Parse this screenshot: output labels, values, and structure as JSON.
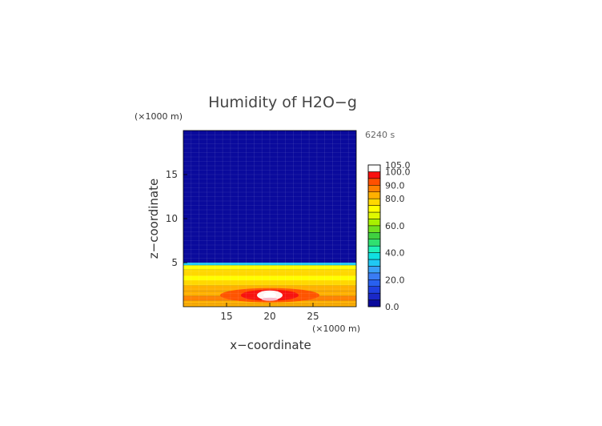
{
  "chart_data": {
    "type": "heatmap",
    "title": "Humidity of H2O−g",
    "xlabel": "x−coordinate",
    "ylabel": "z−coordinate",
    "x_unit": "(×1000 m)",
    "z_unit": "(×1000 m)",
    "time_label": "6240 s",
    "xlim": [
      10,
      30
    ],
    "ylim": [
      0,
      20
    ],
    "x_ticks": [
      15,
      20,
      25
    ],
    "y_ticks": [
      5,
      10,
      15
    ],
    "colorbar": {
      "levels": [
        0,
        5,
        10,
        15,
        20,
        25,
        30,
        35,
        40,
        45,
        50,
        55,
        60,
        65,
        70,
        75,
        80,
        85,
        90,
        95,
        100,
        105
      ],
      "colors": [
        "#0a0a9c",
        "#1a28c8",
        "#2040e0",
        "#2860f0",
        "#3a7cf4",
        "#3aa0f8",
        "#20c8f4",
        "#10e0e0",
        "#20f0b8",
        "#30e070",
        "#40d040",
        "#70e020",
        "#a8f000",
        "#e0f800",
        "#ffff00",
        "#ffd800",
        "#ffb000",
        "#ff8000",
        "#ff5000",
        "#f81010",
        "#ffffff"
      ],
      "tick_labels": [
        "105.0",
        "100.0",
        "90.0",
        "80.0",
        "60.0",
        "40.0",
        "20.0",
        "0.0"
      ],
      "tick_values": [
        105,
        100,
        90,
        80,
        60,
        40,
        20,
        0
      ]
    },
    "field": {
      "upper_value": 2,
      "profile": [
        {
          "z": 5.0,
          "value": 32
        },
        {
          "z": 4.7,
          "value": 72
        },
        {
          "z": 4.2,
          "value": 76
        },
        {
          "z": 3.5,
          "value": 72
        },
        {
          "z": 3.0,
          "value": 76
        },
        {
          "z": 2.4,
          "value": 80
        },
        {
          "z": 1.8,
          "value": 84
        },
        {
          "z": 1.2,
          "value": 88
        },
        {
          "z": 0.7,
          "value": 84
        },
        {
          "z": 0.3,
          "value": 80
        },
        {
          "z": 0.0,
          "value": 76
        }
      ],
      "blob": {
        "x": 20,
        "z": 1.3,
        "value": 100
      }
    }
  }
}
